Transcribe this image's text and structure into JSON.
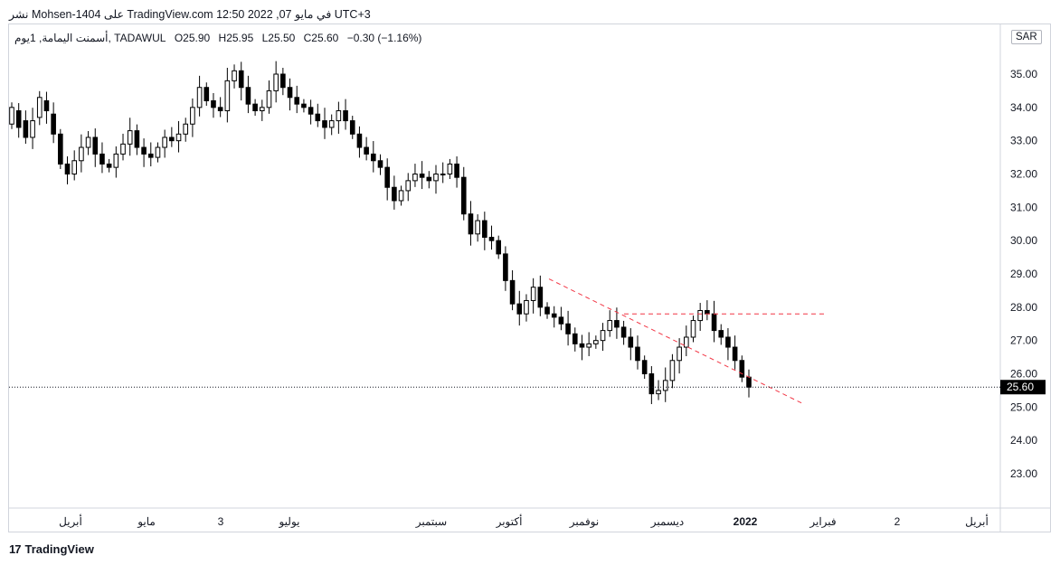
{
  "header": {
    "text": "نشر Mohsen-1404 على TradingView.com في مايو 07, 2022 12:50 UTC+3"
  },
  "legend": {
    "symbol": "أسمنت اليمامة, 1يوم, TADAWUL",
    "open": "O25.90",
    "high": "H25.95",
    "low": "L25.50",
    "close": "C25.60",
    "change": "−0.30 (−1.16%)"
  },
  "currency_button": "SAR",
  "last_price_label": "25.60",
  "footer": {
    "brand": "TradingView",
    "logo_mark": "17"
  },
  "colors": {
    "candle": "#000000",
    "trendline": "#f23645",
    "grid_border": "#d1d4dc",
    "price_label_bg": "#000000"
  },
  "chart_data": {
    "type": "candlestick",
    "yticks": [
      "35.00",
      "34.00",
      "33.00",
      "32.00",
      "31.00",
      "30.00",
      "29.00",
      "28.00",
      "27.00",
      "26.00",
      "25.00",
      "24.00",
      "23.00"
    ],
    "ylim": [
      22.2,
      36.0
    ],
    "xticks": [
      "أبريل",
      "مايو",
      "3",
      "يوليو",
      "سبتمبر",
      "أكتوبر",
      "نوفمبر",
      "ديسمبر",
      "2022",
      "فبراير",
      "2",
      "أبريل"
    ],
    "last_price": 25.6,
    "lines": [
      {
        "type": "descending-trendline",
        "from": [
          0,
          28.85
        ],
        "to": [
          1,
          25.1
        ]
      },
      {
        "type": "horizontal-resistance",
        "value": 27.8
      }
    ],
    "closes": [
      34.0,
      33.4,
      33.1,
      33.6,
      34.3,
      33.9,
      33.2,
      32.3,
      32.0,
      32.4,
      32.8,
      33.1,
      32.6,
      32.3,
      32.2,
      32.6,
      32.9,
      33.3,
      32.8,
      32.6,
      32.5,
      32.8,
      33.1,
      33.0,
      33.2,
      33.5,
      34.0,
      34.6,
      34.2,
      34.0,
      33.9,
      34.8,
      35.1,
      34.6,
      34.1,
      33.9,
      34.0,
      34.5,
      35.0,
      34.6,
      34.3,
      34.1,
      34.0,
      33.8,
      33.6,
      33.4,
      33.6,
      33.9,
      33.6,
      33.2,
      32.8,
      32.6,
      32.4,
      32.2,
      31.6,
      31.2,
      31.5,
      31.8,
      32.0,
      31.9,
      31.8,
      32.0,
      32.0,
      32.3,
      31.9,
      30.8,
      30.2,
      30.6,
      30.1,
      30.0,
      29.6,
      28.8,
      28.1,
      27.8,
      28.2,
      28.6,
      28.0,
      27.8,
      27.7,
      27.5,
      27.2,
      26.9,
      26.8,
      26.9,
      27.0,
      27.3,
      27.6,
      27.4,
      27.1,
      26.8,
      26.4,
      26.0,
      25.4,
      25.5,
      25.8,
      26.4,
      26.8,
      27.1,
      27.6,
      27.9,
      27.8,
      27.3,
      27.1,
      26.8,
      26.4,
      25.9,
      25.6
    ],
    "opens": [
      33.5,
      33.9,
      33.6,
      33.1,
      33.7,
      34.2,
      33.8,
      33.2,
      32.3,
      32.0,
      32.4,
      32.8,
      33.1,
      32.6,
      32.3,
      32.2,
      32.6,
      32.9,
      33.3,
      32.8,
      32.6,
      32.5,
      32.8,
      33.1,
      33.0,
      33.2,
      33.5,
      34.0,
      34.6,
      34.2,
      34.0,
      33.9,
      34.8,
      35.1,
      34.6,
      34.1,
      33.9,
      34.0,
      34.5,
      35.0,
      34.6,
      34.3,
      34.1,
      34.0,
      33.8,
      33.6,
      33.4,
      33.6,
      33.9,
      33.6,
      33.2,
      32.8,
      32.6,
      32.4,
      32.2,
      31.6,
      31.2,
      31.5,
      31.8,
      32.0,
      31.9,
      31.8,
      32.0,
      32.0,
      32.3,
      31.9,
      30.8,
      30.2,
      30.6,
      30.1,
      30.0,
      29.6,
      28.8,
      28.1,
      27.8,
      28.2,
      28.6,
      28.0,
      27.8,
      27.7,
      27.5,
      27.2,
      26.9,
      26.8,
      26.9,
      27.0,
      27.3,
      27.6,
      27.4,
      27.1,
      26.8,
      26.4,
      26.0,
      25.4,
      25.5,
      25.8,
      26.4,
      26.8,
      27.1,
      27.6,
      27.9,
      27.8,
      27.3,
      27.1,
      26.8,
      26.4,
      25.9
    ]
  }
}
